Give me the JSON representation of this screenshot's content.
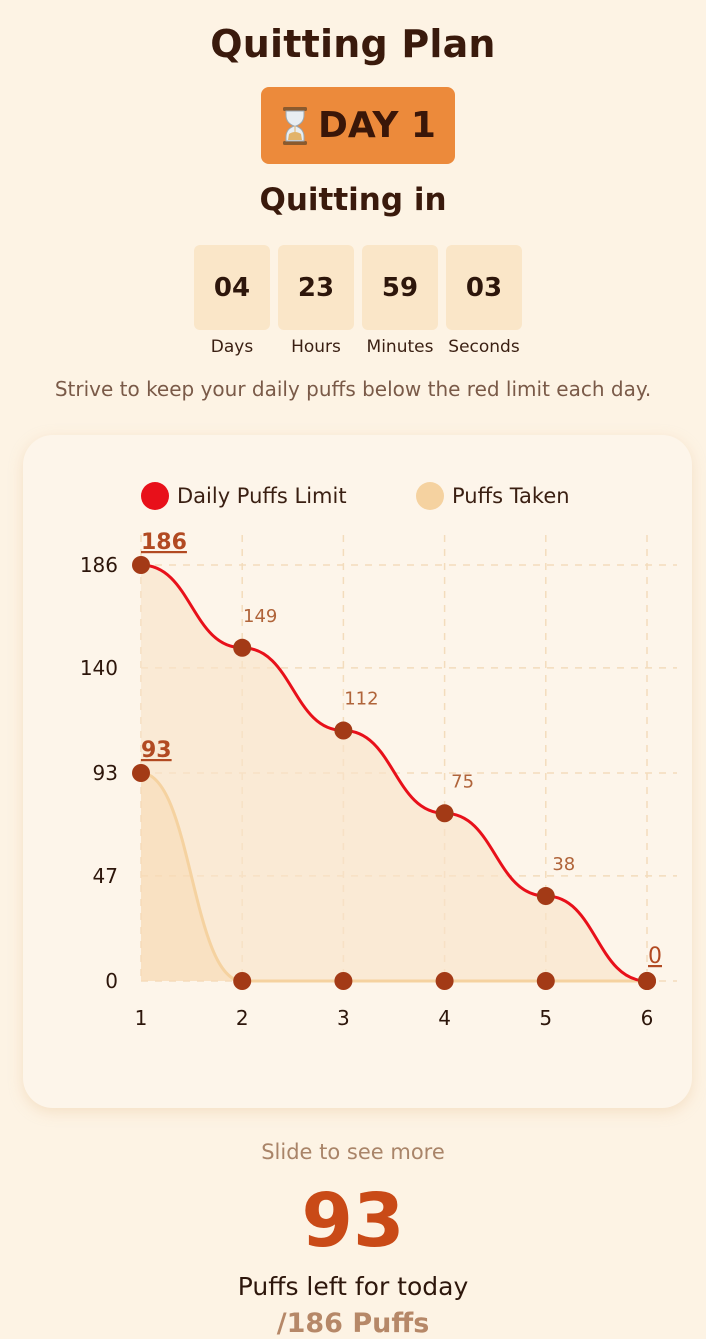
{
  "header": {
    "title": "Quitting Plan",
    "day_badge": "DAY 1",
    "day_icon": "hourglass-icon",
    "subtitle": "Quitting in"
  },
  "countdown": [
    {
      "value": "04",
      "label": "Days"
    },
    {
      "value": "23",
      "label": "Hours"
    },
    {
      "value": "59",
      "label": "Minutes"
    },
    {
      "value": "03",
      "label": "Seconds"
    }
  ],
  "hint": "Strive to keep your daily puffs below the red limit each day.",
  "colors": {
    "background": "#fdf3e4",
    "accent": "#ec8a3b",
    "limit": "#e8101a",
    "taken": "#f5d2a0",
    "point": "#a33a16",
    "highlight": "#c94a17"
  },
  "chart_data": {
    "type": "line",
    "x": [
      1,
      2,
      3,
      4,
      5,
      6
    ],
    "y_ticks": [
      0,
      47,
      93,
      140,
      186
    ],
    "ylim": [
      0,
      186
    ],
    "grid": true,
    "legend_position": "top",
    "series": [
      {
        "name": "Daily Puffs Limit",
        "values": [
          186,
          149,
          112,
          75,
          38,
          0
        ],
        "color": "#e8101a",
        "labels": [
          "186",
          "149",
          "112",
          "75",
          "38",
          "0"
        ]
      },
      {
        "name": "Puffs Taken",
        "values": [
          93,
          0,
          0,
          0,
          0,
          0
        ],
        "color": "#f5d2a0",
        "labels": [
          "93"
        ]
      }
    ]
  },
  "footer": {
    "slide_hint": "Slide to see more",
    "puffs_left": "93",
    "puffs_left_label": "Puffs left for today",
    "total": "/186 Puffs"
  }
}
